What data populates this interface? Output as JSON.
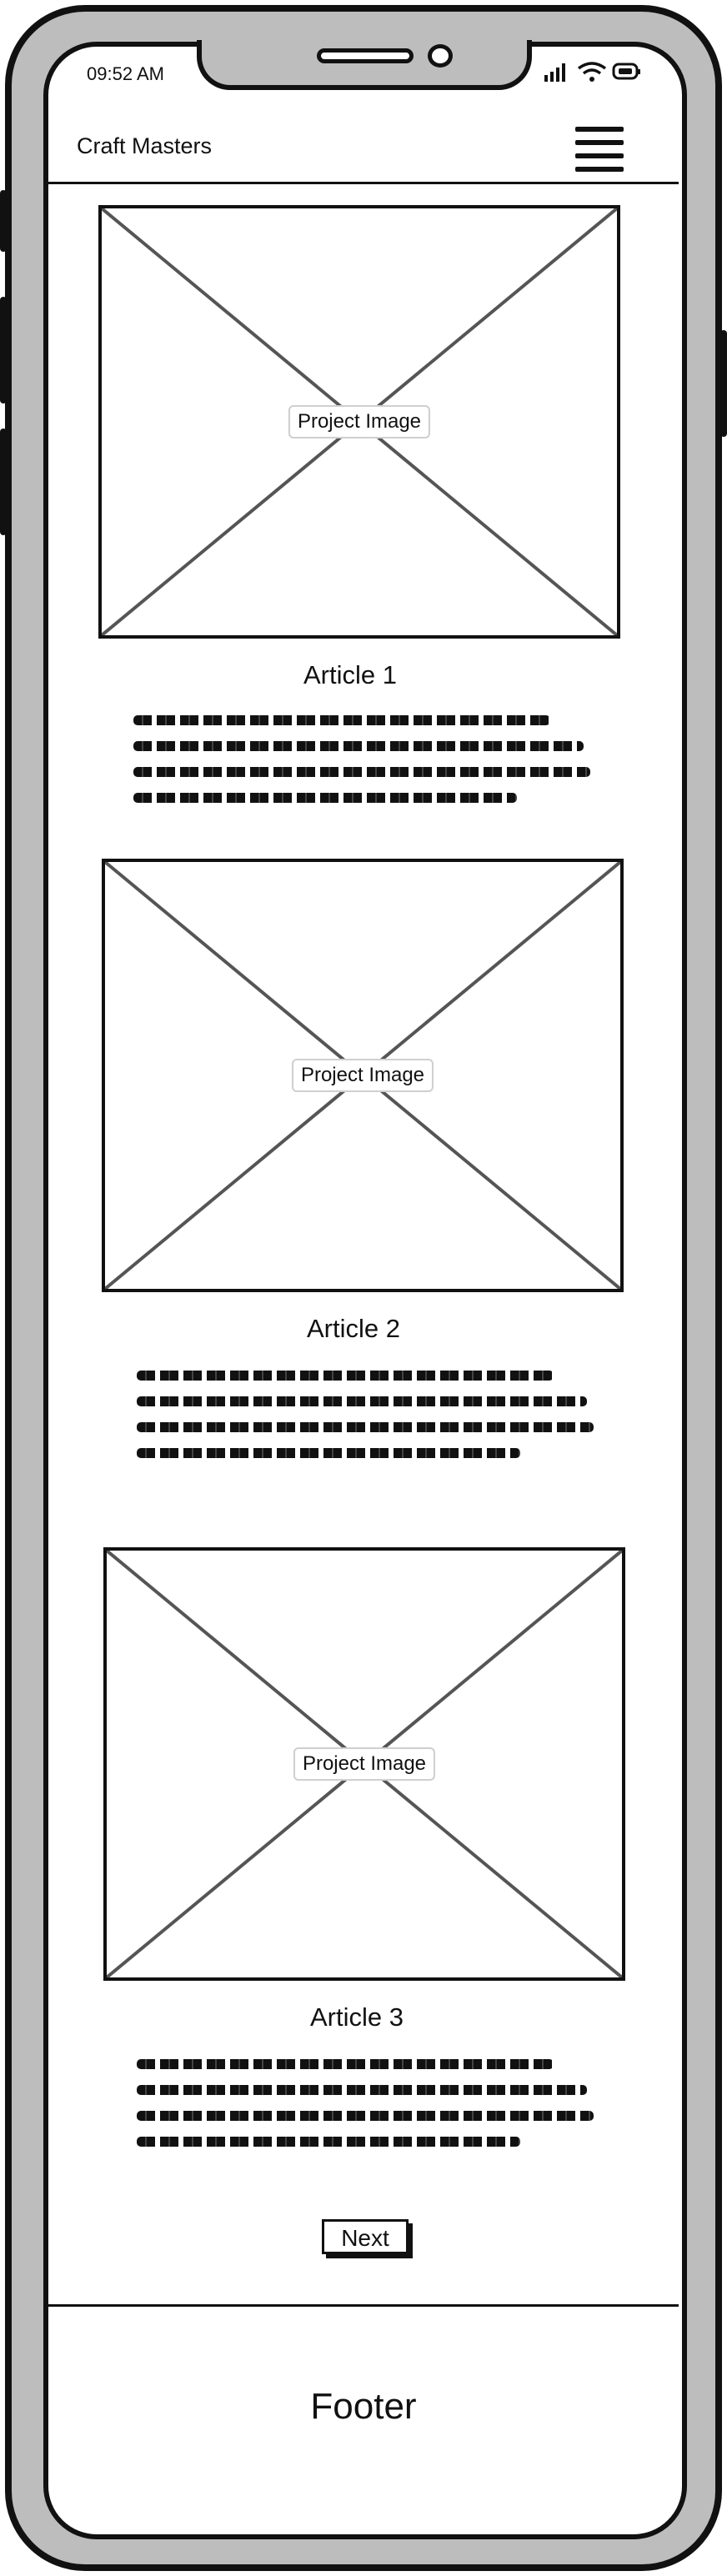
{
  "status_bar": {
    "time": "09:52 AM",
    "icons": [
      "signal-icon",
      "wifi-icon",
      "battery-icon"
    ]
  },
  "header": {
    "title": "Craft Masters",
    "menu_icon": "hamburger-menu-icon"
  },
  "articles": [
    {
      "image_label": "Project Image",
      "title": "Article 1"
    },
    {
      "image_label": "Project Image",
      "title": "Article 2"
    },
    {
      "image_label": "Project Image",
      "title": "Article 3"
    }
  ],
  "pagination": {
    "next_label": "Next"
  },
  "footer": {
    "text": "Footer"
  }
}
